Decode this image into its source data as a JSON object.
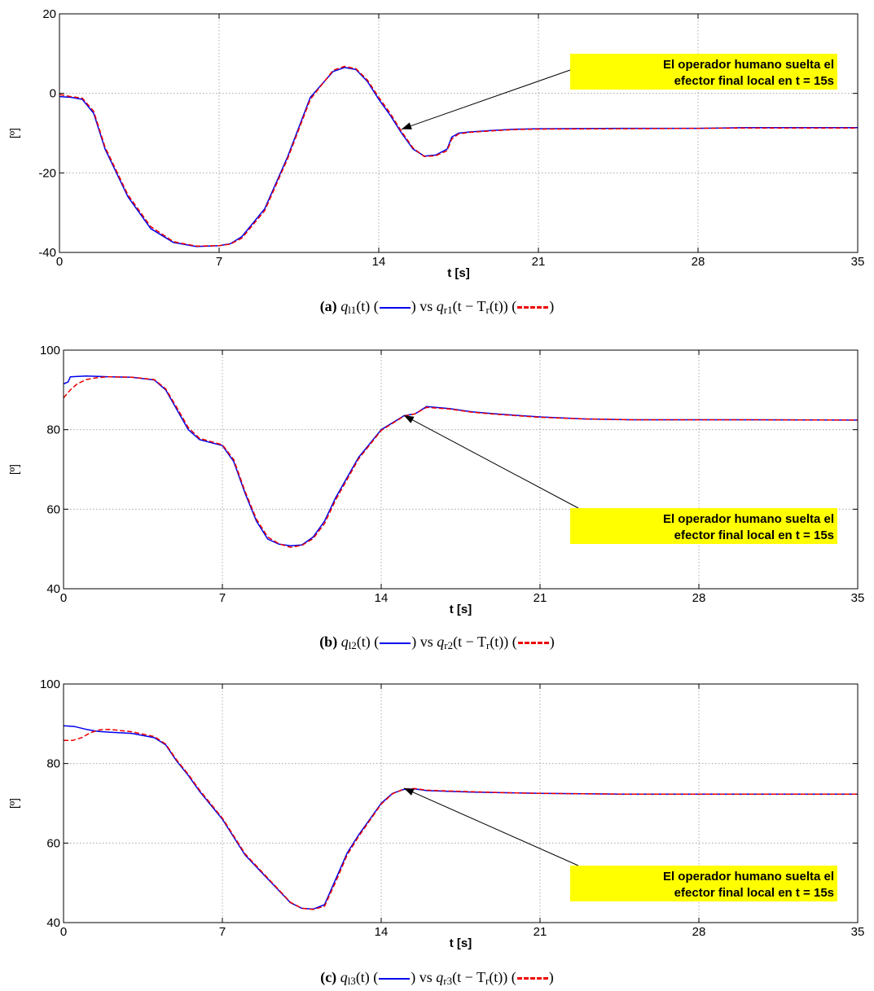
{
  "chart_data": [
    {
      "type": "line",
      "xlabel": "t [s]",
      "ylabel": "[º]",
      "xlim": [
        0,
        35
      ],
      "ylim": [
        -40,
        20
      ],
      "xticks": [
        0,
        7,
        14,
        21,
        28,
        35
      ],
      "yticks": [
        -40,
        -20,
        0,
        20
      ],
      "grid": true,
      "annotation": {
        "line1": "El operador humano suelta el",
        "line2": "efector final local en t = 15s",
        "target": [
          15,
          -9
        ],
        "color": "#ffff00"
      },
      "series": [
        {
          "color": "#0000ee",
          "dash": false,
          "x": [
            0,
            0.5,
            1,
            1.5,
            2,
            3,
            4,
            5,
            6,
            7,
            7.5,
            8,
            9,
            10,
            11,
            12,
            12.5,
            13,
            13.5,
            14,
            14.5,
            15,
            15.5,
            16,
            16.5,
            17,
            17.2,
            17.5,
            18,
            19,
            20,
            21,
            25,
            28,
            30,
            35
          ],
          "y": [
            -0.8,
            -1,
            -1.5,
            -5,
            -14,
            -26,
            -34,
            -37.5,
            -38.5,
            -38.3,
            -37.8,
            -36,
            -29,
            -16,
            -1,
            5.5,
            6.5,
            6,
            3,
            -1.5,
            -5.5,
            -10,
            -14,
            -15.8,
            -15.5,
            -14,
            -11,
            -10,
            -9.7,
            -9.3,
            -9,
            -8.9,
            -8.8,
            -8.8,
            -8.6,
            -8.6
          ]
        },
        {
          "color": "#ee0000",
          "dash": true,
          "x": [
            0,
            0.5,
            1,
            1.5,
            2,
            3,
            4,
            5,
            6,
            7,
            7.5,
            8,
            9,
            10,
            11,
            12,
            12.5,
            13,
            13.5,
            14,
            14.5,
            15,
            15.5,
            16,
            16.5,
            17,
            17.2,
            17.5,
            18,
            19,
            20,
            21,
            25,
            28,
            30,
            35
          ],
          "y": [
            -0.3,
            -0.8,
            -1.2,
            -4.5,
            -13.5,
            -25.5,
            -33.5,
            -37.3,
            -38.4,
            -38.3,
            -37.9,
            -36.4,
            -29.5,
            -16.5,
            -1.5,
            5.8,
            6.8,
            6.2,
            3.4,
            -1,
            -5,
            -9.6,
            -13.7,
            -15.9,
            -15.7,
            -14.4,
            -11.5,
            -10.2,
            -9.8,
            -9.4,
            -9.1,
            -9,
            -8.9,
            -8.8,
            -8.7,
            -8.7
          ]
        }
      ]
    },
    {
      "type": "line",
      "xlabel": "t [s]",
      "ylabel": "[º]",
      "xlim": [
        0,
        35
      ],
      "ylim": [
        40,
        100
      ],
      "xticks": [
        0,
        7,
        14,
        21,
        28,
        35
      ],
      "yticks": [
        40,
        60,
        80,
        100
      ],
      "grid": true,
      "annotation": {
        "line1": "El operador humano suelta el",
        "line2": "efector final local en t = 15s",
        "target": [
          15,
          83.6
        ],
        "color": "#ffff00"
      },
      "series": [
        {
          "color": "#0000ee",
          "dash": false,
          "x": [
            0,
            0.2,
            0.3,
            1,
            2,
            3,
            4,
            4.5,
            5,
            5.5,
            6,
            7,
            7.5,
            8,
            8.5,
            9,
            9.5,
            10,
            10.5,
            11,
            11.5,
            12,
            13,
            14,
            15,
            15.5,
            16,
            17,
            18,
            19,
            20,
            21,
            23,
            25,
            30,
            35
          ],
          "y": [
            91.5,
            92,
            93.3,
            93.5,
            93.3,
            93.2,
            92.5,
            90,
            85,
            80,
            77.5,
            76,
            72,
            64,
            57,
            52.5,
            51.2,
            50.8,
            51,
            53,
            57,
            63,
            73,
            80,
            83.5,
            84,
            85.8,
            85.3,
            84.5,
            84,
            83.6,
            83.2,
            82.7,
            82.5,
            82.5,
            82.4
          ]
        },
        {
          "color": "#ee0000",
          "dash": true,
          "x": [
            0,
            0.3,
            0.6,
            1,
            1.5,
            2,
            3,
            4,
            4.5,
            5,
            5.5,
            6,
            7,
            7.5,
            8,
            8.5,
            9,
            9.5,
            10,
            10.5,
            11,
            11.5,
            12,
            13,
            14,
            15,
            15.5,
            16,
            17,
            18,
            19,
            20,
            21,
            23,
            25,
            30,
            35
          ],
          "y": [
            88,
            90,
            91.5,
            92.6,
            93.1,
            93.3,
            93.2,
            92.6,
            90.3,
            85.5,
            80.5,
            77.8,
            76.2,
            72.5,
            64.5,
            57.5,
            53,
            51.3,
            50.4,
            50.9,
            52.6,
            56.4,
            62.4,
            72.6,
            79.8,
            83.4,
            84,
            85.6,
            85.2,
            84.4,
            83.9,
            83.5,
            83.1,
            82.7,
            82.5,
            82.5,
            82.4
          ]
        }
      ]
    },
    {
      "type": "line",
      "xlabel": "t [s]",
      "ylabel": "[º]",
      "xlim": [
        0,
        35
      ],
      "ylim": [
        40,
        100
      ],
      "xticks": [
        0,
        7,
        14,
        21,
        28,
        35
      ],
      "yticks": [
        40,
        60,
        80,
        100
      ],
      "grid": true,
      "annotation": {
        "line1": "El operador humano suelta el",
        "line2": "efector final local en t = 15s",
        "target": [
          15,
          73.8
        ],
        "color": "#ffff00"
      },
      "series": [
        {
          "color": "#0000ee",
          "dash": false,
          "x": [
            0,
            0.5,
            1,
            1.5,
            2,
            3,
            4,
            4.5,
            5,
            5.5,
            6,
            7,
            8,
            9,
            9.5,
            10,
            10.5,
            11,
            11.5,
            12,
            12.5,
            13,
            13.5,
            14,
            14.5,
            15,
            15.5,
            16,
            18,
            20,
            21,
            25,
            30,
            35
          ],
          "y": [
            89.5,
            89.3,
            88.6,
            88.1,
            87.9,
            87.6,
            86.5,
            84.7,
            80.5,
            77,
            73,
            66,
            57,
            51,
            48,
            45,
            43.6,
            43.4,
            44.5,
            51,
            57.5,
            62,
            66,
            70,
            72.5,
            73.5,
            73.6,
            73.2,
            72.8,
            72.6,
            72.5,
            72.3,
            72.3,
            72.3
          ]
        },
        {
          "color": "#ee0000",
          "dash": true,
          "x": [
            0,
            0.4,
            0.8,
            1.2,
            1.6,
            2,
            3,
            4,
            4.5,
            5,
            5.5,
            6,
            7,
            8,
            9,
            9.5,
            10,
            10.5,
            11,
            11.5,
            12,
            12.5,
            13,
            13.5,
            14,
            14.5,
            15,
            15.5,
            16,
            18,
            20,
            21,
            25,
            30,
            35
          ],
          "y": [
            85.8,
            85.8,
            86.5,
            87.8,
            88.5,
            88.6,
            88,
            86.8,
            84.9,
            80.8,
            77.3,
            73.3,
            66.3,
            57.3,
            51.2,
            48.2,
            45.1,
            43.6,
            43.3,
            44.1,
            50.3,
            57,
            61.6,
            65.7,
            69.8,
            72.4,
            73.6,
            73.7,
            73.3,
            72.9,
            72.6,
            72.5,
            72.3,
            72.3,
            72.3
          ]
        }
      ]
    }
  ],
  "captions": [
    {
      "label": "(a)",
      "math_left": "q",
      "sub_left": "l1",
      "arg_left": "(t) (",
      "vs": ") vs ",
      "math_right": "q",
      "sub_right": "r1",
      "arg_right_a": "(t − T",
      "sub_T": "r",
      "arg_right_b": "(t)) (",
      "close": ")"
    },
    {
      "label": "(b)",
      "math_left": "q",
      "sub_left": "l2",
      "arg_left": "(t) (",
      "vs": ") vs ",
      "math_right": "q",
      "sub_right": "r2",
      "arg_right_a": "(t − T",
      "sub_T": "r",
      "arg_right_b": "(t)) (",
      "close": ")"
    },
    {
      "label": "(c)",
      "math_left": "q",
      "sub_left": "l3",
      "arg_left": "(t) (",
      "vs": ") vs ",
      "math_right": "q",
      "sub_right": "r3",
      "arg_right_a": "(t − T",
      "sub_T": "r",
      "arg_right_b": "(t)) (",
      "close": ")"
    }
  ]
}
